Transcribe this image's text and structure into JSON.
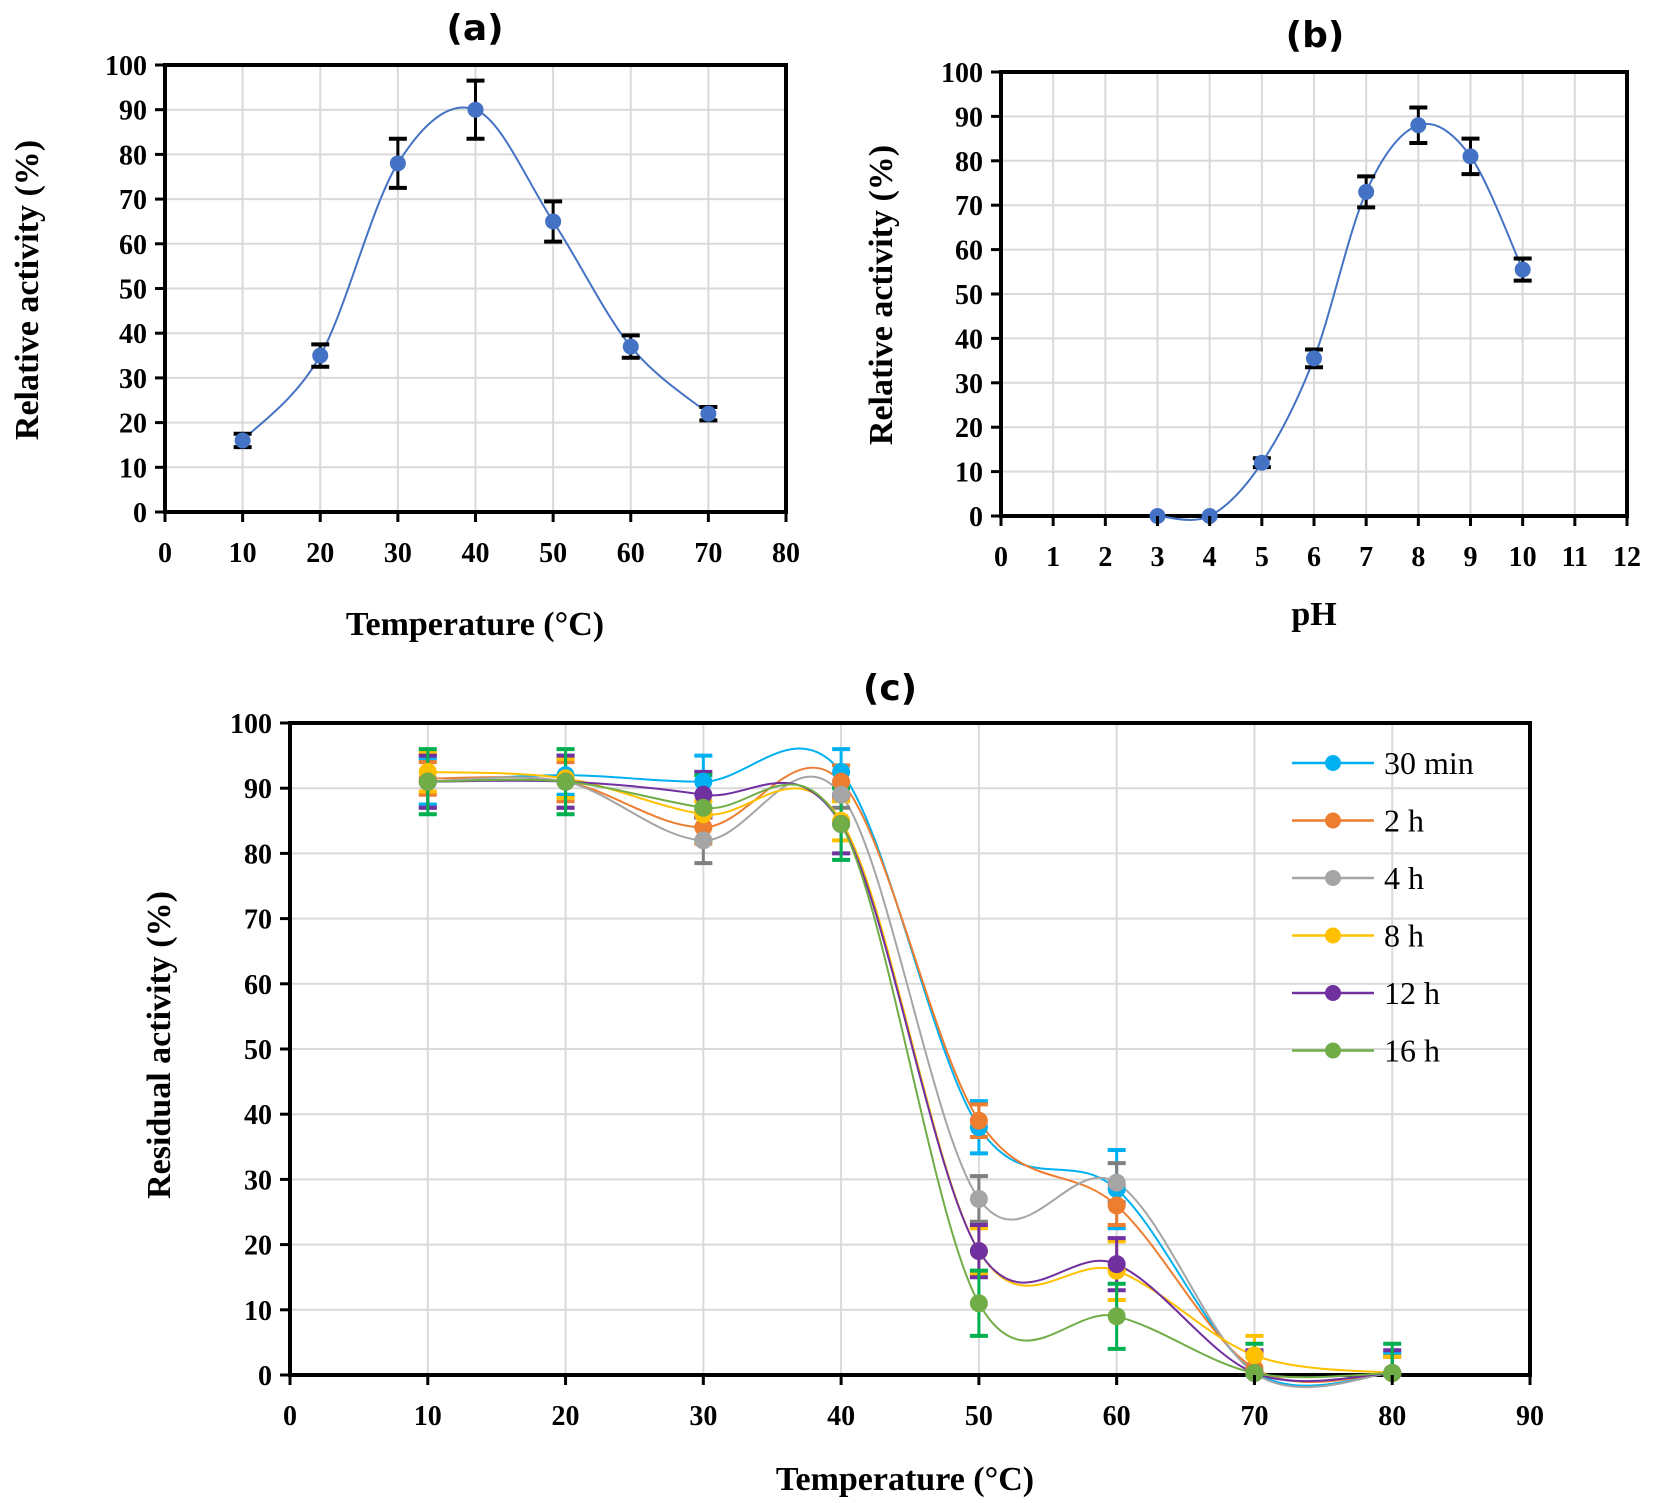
{
  "chart_data": [
    {
      "id": "a",
      "type": "scatter",
      "title": "(a)",
      "xlabel": "Temperature (°C)",
      "ylabel": "Relative activity (%)",
      "xlim": [
        0,
        80
      ],
      "ylim": [
        0,
        100
      ],
      "xticks": [
        0,
        10,
        20,
        30,
        40,
        50,
        60,
        70,
        80
      ],
      "yticks": [
        0,
        10,
        20,
        30,
        40,
        50,
        60,
        70,
        80,
        90,
        100
      ],
      "grid": true,
      "smooth_line": true,
      "series": [
        {
          "name": "Relative activity",
          "color": "#4472C4",
          "error_color": "#000000",
          "x": [
            10,
            20,
            30,
            40,
            50,
            60,
            70
          ],
          "y": [
            16,
            35,
            78,
            90,
            65,
            37,
            22
          ],
          "err": [
            1.5,
            2.5,
            5.5,
            6.5,
            4.5,
            2.5,
            1.5
          ]
        }
      ]
    },
    {
      "id": "b",
      "type": "scatter",
      "title": "(b)",
      "xlabel": "pH",
      "ylabel": "Relative activity (%)",
      "xlim": [
        0,
        12
      ],
      "ylim": [
        0,
        100
      ],
      "xticks": [
        0,
        1,
        2,
        3,
        4,
        5,
        6,
        7,
        8,
        9,
        10,
        11,
        12
      ],
      "yticks": [
        0,
        10,
        20,
        30,
        40,
        50,
        60,
        70,
        80,
        90,
        100
      ],
      "grid": true,
      "smooth_line": true,
      "series": [
        {
          "name": "Relative activity",
          "color": "#4472C4",
          "error_color": "#000000",
          "x": [
            3,
            4,
            5,
            6,
            7,
            8,
            9,
            10
          ],
          "y": [
            0,
            0,
            12,
            35.5,
            73,
            88,
            81,
            55.5
          ],
          "err": [
            0,
            0,
            1,
            2,
            3.5,
            4,
            4,
            2.5
          ]
        }
      ]
    },
    {
      "id": "c",
      "type": "line",
      "title": "(c)",
      "xlabel": "Temperature (°C)",
      "ylabel": "Residual activity (%)",
      "xlim": [
        0,
        90
      ],
      "ylim": [
        0,
        100
      ],
      "xticks": [
        0,
        10,
        20,
        30,
        40,
        50,
        60,
        70,
        80,
        90
      ],
      "yticks": [
        0,
        10,
        20,
        30,
        40,
        50,
        60,
        70,
        80,
        90,
        100
      ],
      "grid": true,
      "legend": "top-right",
      "smooth_line": true,
      "x": [
        10,
        20,
        30,
        40,
        50,
        60,
        70,
        80
      ],
      "series": [
        {
          "name": "30 min",
          "color": "#00B0F0",
          "error_color": "#00B0F0",
          "y": [
            91,
            92,
            91,
            92.5,
            38,
            28.5,
            0.5,
            0.3
          ],
          "err": [
            3.5,
            3,
            4,
            3.5,
            4,
            6,
            2.5,
            3
          ]
        },
        {
          "name": "2 h",
          "color": "#ED7D31",
          "error_color": "#ED7D31",
          "y": [
            91.5,
            91,
            84,
            91,
            39,
            26,
            1,
            0.3
          ],
          "err": [
            2.5,
            3,
            2.5,
            2.5,
            2.5,
            3,
            2.5,
            2.5
          ]
        },
        {
          "name": "4 h",
          "color": "#A5A5A5",
          "error_color": "#7F7F7F",
          "y": [
            91,
            91,
            82,
            89,
            27,
            29.5,
            0.3,
            0.3
          ],
          "err": [
            4,
            4,
            3.5,
            2,
            3.5,
            3,
            2.5,
            2.5
          ]
        },
        {
          "name": "8 h",
          "color": "#FFC000",
          "error_color": "#FFC000",
          "y": [
            92.5,
            91.5,
            86,
            85,
            19,
            16,
            3,
            0.3
          ],
          "err": [
            3,
            3,
            2,
            3,
            3.5,
            4.5,
            3,
            2.5
          ]
        },
        {
          "name": "12 h",
          "color": "#7030A0",
          "error_color": "#7030A0",
          "y": [
            91,
            91,
            89,
            84.5,
            19,
            17,
            0.3,
            0.3
          ],
          "err": [
            4,
            4,
            3.5,
            4.5,
            4,
            4,
            3.5,
            3.5
          ]
        },
        {
          "name": "16 h",
          "color": "#70AD47",
          "error_color": "#00B050",
          "y": [
            91,
            91,
            87,
            84.5,
            11,
            9,
            0.3,
            0.3
          ],
          "err": [
            5,
            5,
            5,
            5.5,
            5,
            5,
            4.5,
            4.5
          ]
        }
      ]
    }
  ]
}
